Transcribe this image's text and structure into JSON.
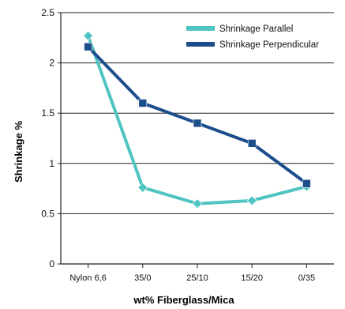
{
  "chart_data": {
    "type": "line",
    "title": "",
    "xlabel": "wt% Fiberglass/Mica",
    "ylabel": "Shrinkage %",
    "categories": [
      "Nylon 6,6",
      "35/0",
      "25/10",
      "15/20",
      "0/35"
    ],
    "ylim": [
      0,
      2.5
    ],
    "yticks": [
      "0",
      "0.5",
      "1",
      "1.5",
      "2",
      "2.5"
    ],
    "grid": true,
    "legend_position": "top-right",
    "series": [
      {
        "name": "Shrinkage Parallel",
        "values": [
          2.27,
          0.76,
          0.6,
          0.63,
          0.77
        ],
        "color": "#4fc4c0",
        "marker": "diamond"
      },
      {
        "name": "Shrinkage Perpendicular",
        "values": [
          2.16,
          1.6,
          1.4,
          1.2,
          0.8
        ],
        "color": "#1d4e8c",
        "marker": "square"
      }
    ]
  }
}
